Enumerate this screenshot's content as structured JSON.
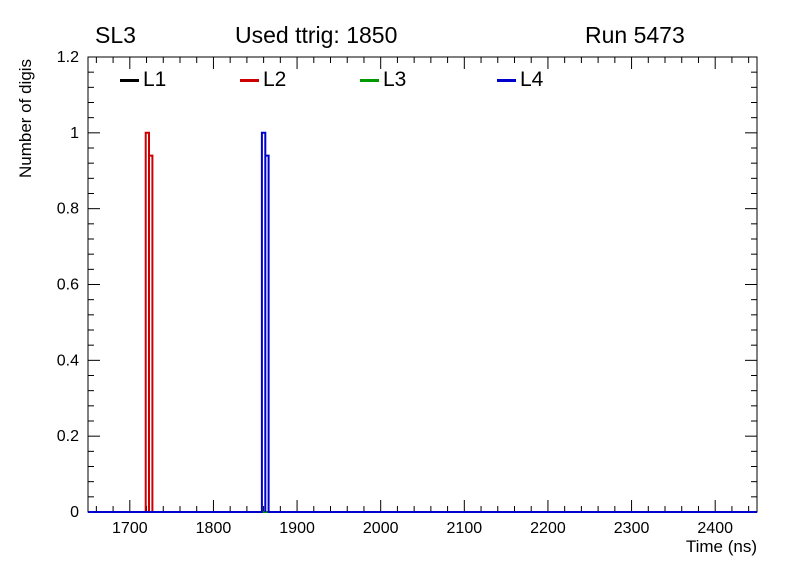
{
  "header": {
    "left_label": "SL3",
    "center_label": "Used ttrig: 1850",
    "right_label": "Run 5473"
  },
  "legend": {
    "entries": [
      {
        "label": "L1",
        "color": "#000000"
      },
      {
        "label": "L2",
        "color": "#cc0000"
      },
      {
        "label": "L3",
        "color": "#009900"
      },
      {
        "label": "L4",
        "color": "#0000cc"
      }
    ]
  },
  "chart_data": {
    "type": "line",
    "title": "Used ttrig: 1850",
    "subtitle_left": "SL3",
    "subtitle_right": "Run 5473",
    "xlabel": "Time (ns)",
    "ylabel": "Number of digis",
    "xlim": [
      1650,
      2450
    ],
    "ylim": [
      0,
      1.2
    ],
    "x_ticks": [
      1700,
      1800,
      1900,
      2000,
      2100,
      2200,
      2300,
      2400
    ],
    "y_ticks": [
      0,
      0.2,
      0.4,
      0.6,
      0.8,
      1,
      1.2
    ],
    "x_minor_step": 20,
    "y_minor_step": 0.04,
    "grid": false,
    "legend_position": "top-inside",
    "axis_color": "#000000",
    "series": [
      {
        "name": "L1",
        "color": "#000000",
        "bins": []
      },
      {
        "name": "L2",
        "color": "#cc0000",
        "bins": [
          {
            "x1": 1719,
            "x2": 1723,
            "y": 1.0
          },
          {
            "x1": 1723,
            "x2": 1727,
            "y": 0.94
          }
        ]
      },
      {
        "name": "L3",
        "color": "#009900",
        "bins": []
      },
      {
        "name": "L4",
        "color": "#0000cc",
        "bins": [
          {
            "x1": 1858,
            "x2": 1862,
            "y": 1.0
          },
          {
            "x1": 1862,
            "x2": 1866,
            "y": 0.94
          }
        ]
      }
    ]
  }
}
